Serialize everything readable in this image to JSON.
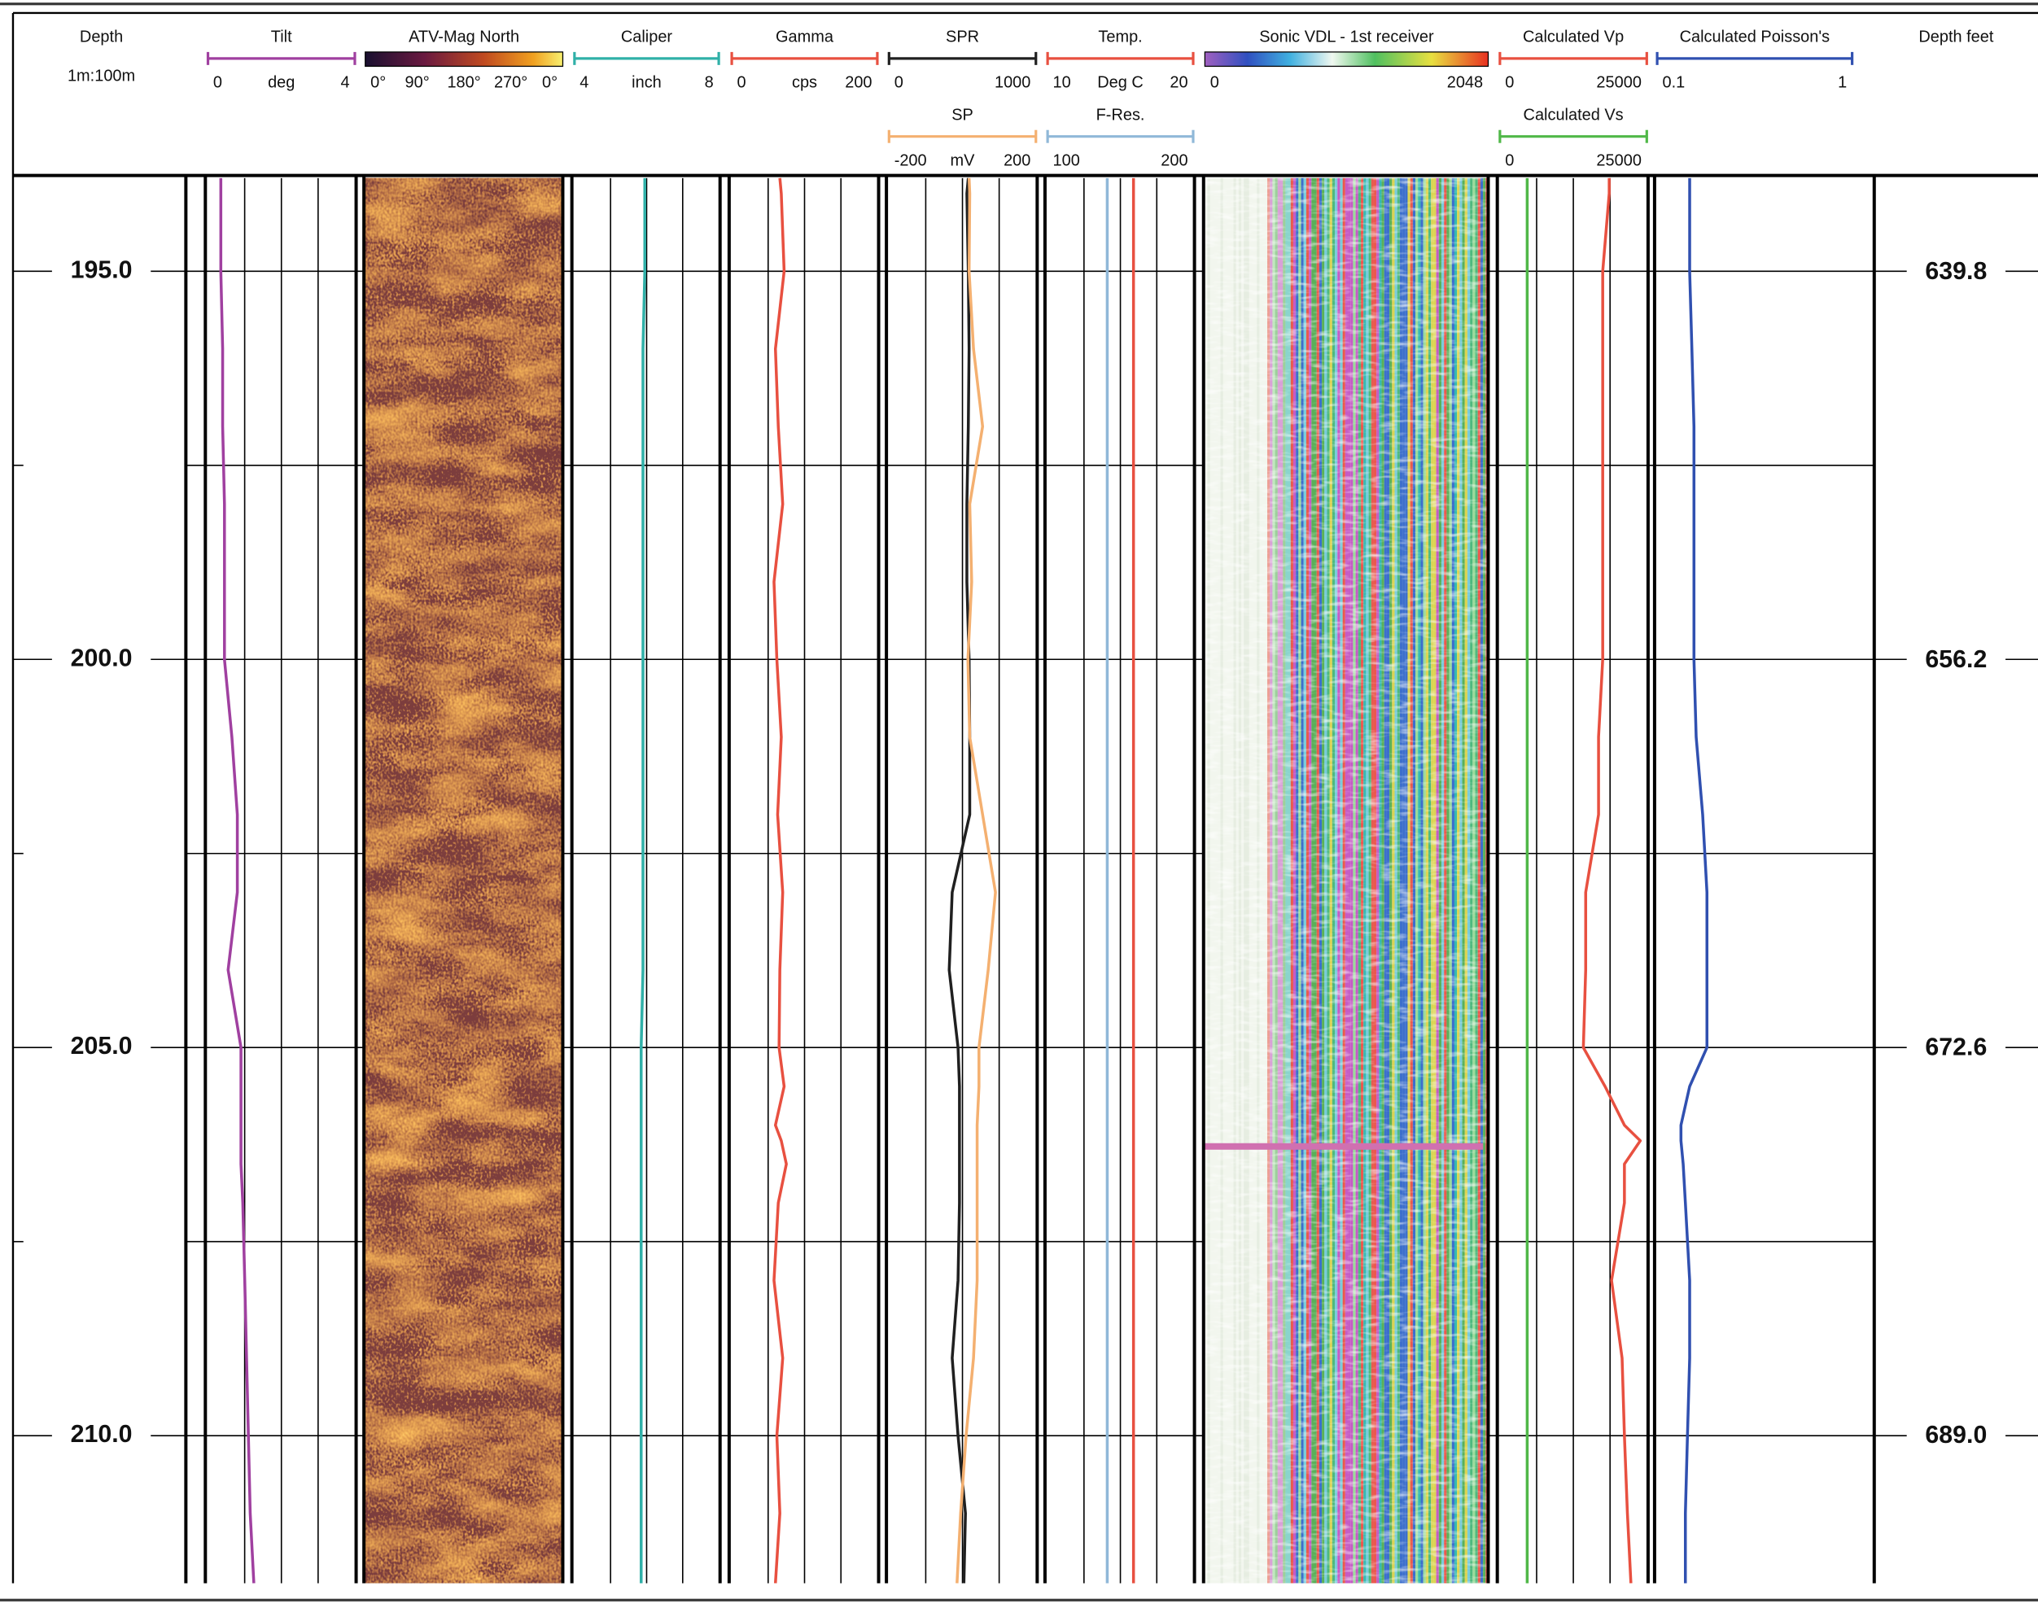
{
  "chart_data": {
    "type": "well-log",
    "depth_title": "Depth",
    "depth_scale": "1m:100m",
    "feet_title": "Depth feet",
    "ylim": [
      193.8,
      211.9
    ],
    "yticks": [
      {
        "value": 195,
        "label": "195.0"
      },
      {
        "value": 200,
        "label": "200.0"
      },
      {
        "value": 205,
        "label": "205.0"
      },
      {
        "value": 210,
        "label": "210.0"
      }
    ],
    "minor_yticks": [
      197.5,
      202.5,
      207.5
    ],
    "y2lim": [
      635.8,
      695.2
    ],
    "y2ticks": [
      639.8,
      656.2,
      672.6,
      {
        "value": 689,
        "label": "689.0"
      }
    ],
    "depth": [
      193.8,
      194,
      195,
      196,
      197,
      198,
      199,
      200,
      201,
      202,
      203,
      204,
      205,
      205.5,
      206,
      206.2,
      206.5,
      207,
      208,
      209,
      210,
      211,
      211.9
    ],
    "tracks": [
      {
        "grid": true,
        "curves": [
          {
            "name": "Tilt",
            "color": "#a040a0",
            "xlim": [
              0,
              4
            ],
            "unit": "deg",
            "values": [
              0.35,
              0.35,
              0.35,
              0.4,
              0.4,
              0.45,
              0.45,
              0.45,
              0.65,
              0.8,
              0.8,
              0.55,
              0.9,
              0.9,
              0.9,
              0.9,
              0.9,
              0.95,
              1.0,
              1.05,
              1.1,
              1.15,
              1.25
            ]
          }
        ]
      },
      {
        "image": {
          "name": "ATV-Mag North",
          "scale_labels": [
            "0°",
            "90°",
            "180°",
            "270°",
            "0°"
          ]
        }
      },
      {
        "grid": true,
        "curves": [
          {
            "name": "Caliper",
            "color": "#30b0a8",
            "xlim": [
              4,
              8
            ],
            "unit": "inch",
            "values": [
              5.95,
              5.95,
              5.95,
              5.9,
              5.9,
              5.9,
              5.9,
              5.9,
              5.9,
              5.9,
              5.9,
              5.9,
              5.85,
              5.85,
              5.85,
              5.85,
              5.85,
              5.85,
              5.85,
              5.85,
              5.85,
              5.85,
              5.85
            ]
          }
        ]
      },
      {
        "grid": true,
        "curves": [
          {
            "name": "Gamma",
            "color": "#e85040",
            "xlim": [
              0,
              200
            ],
            "unit": "cps",
            "values": [
              66,
              68,
              72,
              60,
              64,
              70,
              58,
              62,
              68,
              63,
              70,
              66,
              65,
              72,
              60,
              68,
              75,
              64,
              58,
              70,
              62,
              66,
              60
            ]
          }
        ]
      },
      {
        "grid": true,
        "curves": [
          {
            "name": "SPR",
            "color": "#202020",
            "xlim": [
              0,
              1000
            ],
            "values": [
              540,
              530,
              540,
              545,
              540,
              530,
              530,
              545,
              550,
              550,
              430,
              410,
              470,
              480,
              480,
              480,
              480,
              480,
              470,
              430,
              470,
              520,
              510
            ]
          },
          {
            "name": "SP",
            "color": "#f4b070",
            "xlim": [
              -200,
              200
            ],
            "unit": "mV",
            "values": [
              18,
              20,
              18,
              30,
              55,
              20,
              25,
              15,
              20,
              55,
              90,
              70,
              45,
              45,
              40,
              40,
              40,
              40,
              40,
              30,
              10,
              -5,
              -15
            ]
          }
        ]
      },
      {
        "grid": true,
        "curves": [
          {
            "name": "Temp.",
            "color": "#e85040",
            "xlim": [
              10,
              20
            ],
            "unit": "Deg C",
            "values": [
              15.9,
              15.9,
              15.9,
              15.9,
              15.9,
              15.9,
              15.9,
              15.9,
              15.9,
              15.9,
              15.9,
              15.9,
              15.9,
              15.9,
              15.9,
              15.9,
              15.9,
              15.9,
              15.9,
              15.9,
              15.9,
              15.9,
              15.9
            ]
          },
          {
            "name": "F-Res.",
            "color": "#90b8d8",
            "xlim": [
              100,
              200
            ],
            "values": [
              141,
              141,
              141,
              141,
              141,
              141,
              141,
              141,
              141,
              141,
              141,
              141,
              141,
              141,
              141,
              141,
              141,
              141,
              141,
              141,
              141,
              141,
              141
            ]
          }
        ]
      },
      {
        "image": {
          "name": "Sonic VDL - 1st receiver",
          "xlim": [
            0,
            2048
          ]
        }
      },
      {
        "grid": true,
        "curves": [
          {
            "name": "Calculated Vp",
            "color": "#e85040",
            "xlim": [
              0,
              25000
            ],
            "values": [
              18600,
              18600,
              17500,
              17500,
              17500,
              17500,
              17500,
              17500,
              16800,
              16800,
              14600,
              14600,
              14200,
              17900,
              21200,
              23900,
              21200,
              21200,
              19000,
              20800,
              21200,
              21700,
              22300
            ]
          },
          {
            "name": "Calculated Vs",
            "color": "#50b848",
            "xlim": [
              0,
              25000
            ],
            "values": [
              4650,
              4650,
              4650,
              4650,
              4650,
              4650,
              4650,
              4650,
              4650,
              4650,
              4650,
              4650,
              4650,
              4650,
              4650,
              4650,
              4650,
              4650,
              4650,
              4650,
              4650,
              4650,
              4650
            ]
          }
        ]
      },
      {
        "grid": false,
        "curves": [
          {
            "name": "Calculated Poisson's",
            "color": "#3050b0",
            "xlim": [
              0.1,
              1
            ],
            "values": [
              0.25,
              0.25,
              0.25,
              0.26,
              0.27,
              0.27,
              0.27,
              0.27,
              0.28,
              0.31,
              0.33,
              0.33,
              0.33,
              0.25,
              0.21,
              0.21,
              0.22,
              0.23,
              0.25,
              0.25,
              0.24,
              0.23,
              0.23
            ]
          }
        ]
      }
    ]
  }
}
